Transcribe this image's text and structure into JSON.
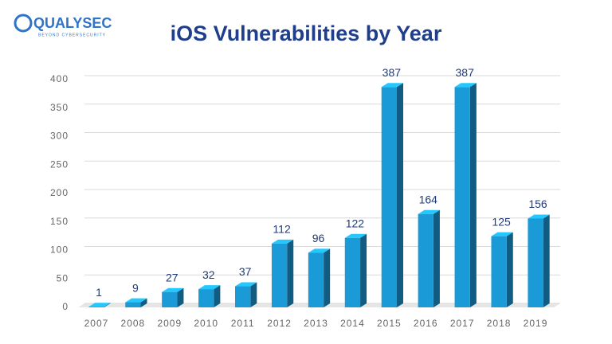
{
  "logo": {
    "name": "QUALYSEC",
    "tagline": "BEYOND CYBERSECURITY"
  },
  "chart_data": {
    "type": "bar",
    "title": "iOS Vulnerabilities by Year",
    "categories": [
      "2007",
      "2008",
      "2009",
      "2010",
      "2011",
      "2012",
      "2013",
      "2014",
      "2015",
      "2016",
      "2017",
      "2018",
      "2019"
    ],
    "values": [
      1,
      9,
      27,
      32,
      37,
      112,
      96,
      122,
      387,
      164,
      387,
      125,
      156
    ],
    "color": "#1b9ad8",
    "ylim": [
      0,
      400
    ],
    "yticks": [
      0,
      50,
      100,
      150,
      200,
      250,
      300,
      350,
      400
    ],
    "grid": true
  }
}
